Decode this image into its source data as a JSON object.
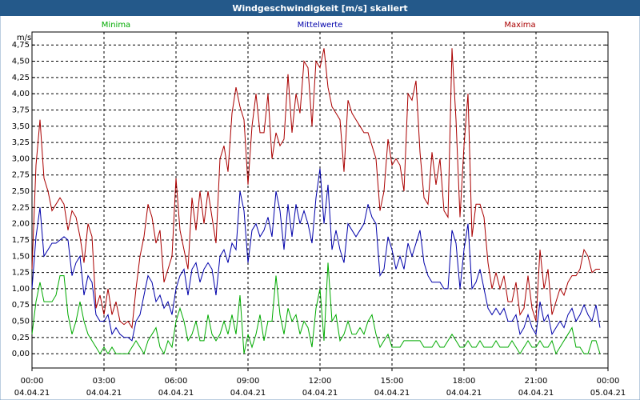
{
  "chart_data": {
    "type": "line",
    "title": "Windgeschwindigkeit [m/s] skaliert",
    "y_label": "m/s",
    "xlim": [
      0,
      1440
    ],
    "ylim": [
      -0.22,
      4.95
    ],
    "grid": true,
    "xticks": [
      {
        "value": 0,
        "label": "00:00"
      },
      {
        "value": 180,
        "label": "03:00"
      },
      {
        "value": 360,
        "label": "06:00"
      },
      {
        "value": 540,
        "label": "09:00"
      },
      {
        "value": 720,
        "label": "12:00"
      },
      {
        "value": 900,
        "label": "15:00"
      },
      {
        "value": 1080,
        "label": "18:00"
      },
      {
        "value": 1260,
        "label": "21:00"
      },
      {
        "value": 1440,
        "label": "00:00"
      }
    ],
    "xtick_dates": [
      "04.04.21",
      "04.04.21",
      "04.04.21",
      "04.04.21",
      "04.04.21",
      "04.04.21",
      "04.04.21",
      "04.04.21",
      "05.04.21"
    ],
    "yticks": [
      {
        "value": 0,
        "label": "0,00"
      },
      {
        "value": 0.25,
        "label": "0,25"
      },
      {
        "value": 0.5,
        "label": "0,50"
      },
      {
        "value": 0.75,
        "label": "0,75"
      },
      {
        "value": 1,
        "label": "1,00"
      },
      {
        "value": 1.25,
        "label": "1,25"
      },
      {
        "value": 1.5,
        "label": "1,50"
      },
      {
        "value": 1.75,
        "label": "1,75"
      },
      {
        "value": 2,
        "label": "2,00"
      },
      {
        "value": 2.25,
        "label": "2,25"
      },
      {
        "value": 2.5,
        "label": "2,50"
      },
      {
        "value": 2.75,
        "label": "2,75"
      },
      {
        "value": 3,
        "label": "3,00"
      },
      {
        "value": 3.25,
        "label": "3,25"
      },
      {
        "value": 3.5,
        "label": "3,50"
      },
      {
        "value": 3.75,
        "label": "3,75"
      },
      {
        "value": 4,
        "label": "4,00"
      },
      {
        "value": 4.25,
        "label": "4,25"
      },
      {
        "value": 4.5,
        "label": "4,50"
      },
      {
        "value": 4.75,
        "label": "4,75"
      }
    ],
    "x": [
      0,
      10,
      20,
      30,
      40,
      50,
      60,
      70,
      80,
      90,
      100,
      110,
      120,
      130,
      140,
      150,
      160,
      170,
      180,
      190,
      200,
      210,
      220,
      230,
      240,
      250,
      260,
      270,
      280,
      290,
      300,
      310,
      320,
      330,
      340,
      350,
      360,
      370,
      380,
      390,
      400,
      410,
      420,
      430,
      440,
      450,
      460,
      470,
      480,
      490,
      500,
      510,
      520,
      530,
      540,
      550,
      560,
      570,
      580,
      590,
      600,
      610,
      620,
      630,
      640,
      650,
      660,
      670,
      680,
      690,
      700,
      710,
      720,
      730,
      740,
      750,
      760,
      770,
      780,
      790,
      800,
      810,
      820,
      830,
      840,
      850,
      860,
      870,
      880,
      890,
      900,
      910,
      920,
      930,
      940,
      950,
      960,
      970,
      980,
      990,
      1000,
      1010,
      1020,
      1030,
      1040,
      1050,
      1060,
      1070,
      1080,
      1090,
      1100,
      1110,
      1120,
      1130,
      1140,
      1150,
      1160,
      1170,
      1180,
      1190,
      1200,
      1210,
      1220,
      1230,
      1240,
      1250,
      1260,
      1270,
      1280,
      1290,
      1300,
      1310,
      1320,
      1330,
      1340,
      1350,
      1360,
      1370,
      1380,
      1390,
      1400,
      1410,
      1420
    ],
    "series": [
      {
        "name": "Minima",
        "color": "#00aa00",
        "values": [
          0.3,
          0.8,
          1.1,
          0.8,
          0.8,
          0.8,
          0.9,
          1.2,
          1.2,
          0.6,
          0.3,
          0.5,
          0.8,
          0.5,
          0.3,
          0.2,
          0.1,
          0.0,
          0.1,
          0.0,
          0.1,
          0.0,
          0.0,
          0.0,
          0.0,
          0.1,
          0.2,
          0.1,
          0.0,
          0.2,
          0.3,
          0.4,
          0.1,
          0.0,
          0.2,
          0.1,
          0.5,
          0.7,
          0.5,
          0.2,
          0.3,
          0.5,
          0.2,
          0.2,
          0.6,
          0.3,
          0.2,
          0.3,
          0.5,
          0.3,
          0.6,
          0.3,
          0.9,
          0.0,
          0.3,
          0.1,
          0.3,
          0.6,
          0.2,
          0.5,
          0.5,
          1.2,
          0.6,
          0.3,
          0.7,
          0.5,
          0.6,
          0.3,
          0.5,
          0.4,
          0.1,
          0.7,
          1.0,
          0.2,
          1.4,
          0.5,
          0.6,
          0.2,
          0.3,
          0.5,
          0.3,
          0.3,
          0.4,
          0.3,
          0.5,
          0.6,
          0.3,
          0.1,
          0.2,
          0.3,
          0.1,
          0.1,
          0.1,
          0.2,
          0.2,
          0.2,
          0.2,
          0.2,
          0.1,
          0.1,
          0.1,
          0.2,
          0.1,
          0.1,
          0.2,
          0.3,
          0.2,
          0.1,
          0.1,
          0.2,
          0.1,
          0.1,
          0.2,
          0.1,
          0.1,
          0.1,
          0.2,
          0.1,
          0.1,
          0.1,
          0.2,
          0.1,
          0.0,
          0.1,
          0.2,
          0.1,
          0.1,
          0.2,
          0.1,
          0.1,
          0.2,
          0.0,
          0.1,
          0.2,
          0.3,
          0.4,
          0.1,
          0.1,
          0.0,
          0.0,
          0.2,
          0.2,
          0.0
        ]
      },
      {
        "name": "Mittelwerte",
        "color": "#0000aa",
        "values": [
          1.0,
          1.8,
          2.25,
          1.5,
          1.6,
          1.7,
          1.7,
          1.75,
          1.8,
          1.75,
          1.2,
          1.4,
          1.5,
          0.9,
          1.2,
          1.1,
          0.6,
          0.5,
          0.5,
          0.6,
          0.3,
          0.4,
          0.3,
          0.25,
          0.25,
          0.2,
          0.5,
          0.6,
          0.9,
          1.2,
          1.1,
          0.8,
          0.9,
          0.7,
          0.8,
          0.6,
          1.0,
          1.2,
          1.3,
          0.9,
          1.3,
          1.4,
          1.1,
          1.3,
          1.4,
          1.3,
          0.9,
          1.5,
          1.6,
          1.4,
          1.7,
          1.6,
          2.5,
          2.2,
          1.4,
          1.9,
          2.0,
          1.8,
          1.9,
          2.1,
          1.8,
          2.5,
          2.2,
          1.6,
          2.3,
          1.8,
          2.3,
          2.0,
          2.2,
          2.0,
          1.7,
          2.4,
          2.85,
          2.0,
          2.6,
          1.6,
          1.9,
          1.6,
          1.4,
          2.0,
          1.9,
          1.8,
          1.9,
          2.0,
          2.3,
          2.1,
          2.0,
          1.2,
          1.3,
          1.8,
          1.6,
          1.3,
          1.5,
          1.3,
          1.7,
          1.5,
          1.7,
          1.9,
          1.4,
          1.2,
          1.1,
          1.1,
          1.1,
          1.0,
          1.0,
          1.9,
          1.7,
          1.0,
          1.6,
          2.0,
          1.0,
          1.1,
          1.3,
          1.0,
          0.7,
          0.6,
          0.7,
          0.6,
          0.7,
          0.5,
          0.5,
          0.6,
          0.3,
          0.4,
          0.6,
          0.4,
          0.3,
          0.8,
          0.5,
          0.6,
          0.3,
          0.4,
          0.5,
          0.4,
          0.6,
          0.7,
          0.5,
          0.6,
          0.75,
          0.6,
          0.5,
          0.75,
          0.4
        ]
      },
      {
        "name": "Maxima",
        "color": "#aa0000",
        "values": [
          1.3,
          2.9,
          3.6,
          2.7,
          2.5,
          2.2,
          2.3,
          2.4,
          2.3,
          1.9,
          2.2,
          2.1,
          1.8,
          1.4,
          2.0,
          1.8,
          0.7,
          0.9,
          0.6,
          1.0,
          0.6,
          0.8,
          0.5,
          0.45,
          0.5,
          0.4,
          1.0,
          1.5,
          1.8,
          2.3,
          2.1,
          1.7,
          1.9,
          1.1,
          1.3,
          1.5,
          2.7,
          1.9,
          1.6,
          1.3,
          2.4,
          1.9,
          2.5,
          2.0,
          2.5,
          2.1,
          1.7,
          3.0,
          3.2,
          2.8,
          3.7,
          4.1,
          3.8,
          3.6,
          2.6,
          3.5,
          4.0,
          3.4,
          3.4,
          4.0,
          3.0,
          3.4,
          3.2,
          3.3,
          4.3,
          3.4,
          4.0,
          3.7,
          4.5,
          4.4,
          3.5,
          4.5,
          4.4,
          4.7,
          4.1,
          3.8,
          3.7,
          3.6,
          2.8,
          3.9,
          3.7,
          3.6,
          3.5,
          3.4,
          3.4,
          3.2,
          3.0,
          2.2,
          2.5,
          3.3,
          2.9,
          3.0,
          2.9,
          2.5,
          4.0,
          3.9,
          4.2,
          3.1,
          2.4,
          2.3,
          3.1,
          2.6,
          3.0,
          2.2,
          2.1,
          4.7,
          3.6,
          2.1,
          3.2,
          4.0,
          1.8,
          2.3,
          2.3,
          2.1,
          1.4,
          1.0,
          1.25,
          1.0,
          1.2,
          0.8,
          0.8,
          1.1,
          0.6,
          0.7,
          1.2,
          0.7,
          0.5,
          1.6,
          1.0,
          1.3,
          0.6,
          0.8,
          1.0,
          0.9,
          1.1,
          1.2,
          1.2,
          1.3,
          1.6,
          1.5,
          1.25,
          1.3,
          1.3
        ]
      }
    ]
  }
}
